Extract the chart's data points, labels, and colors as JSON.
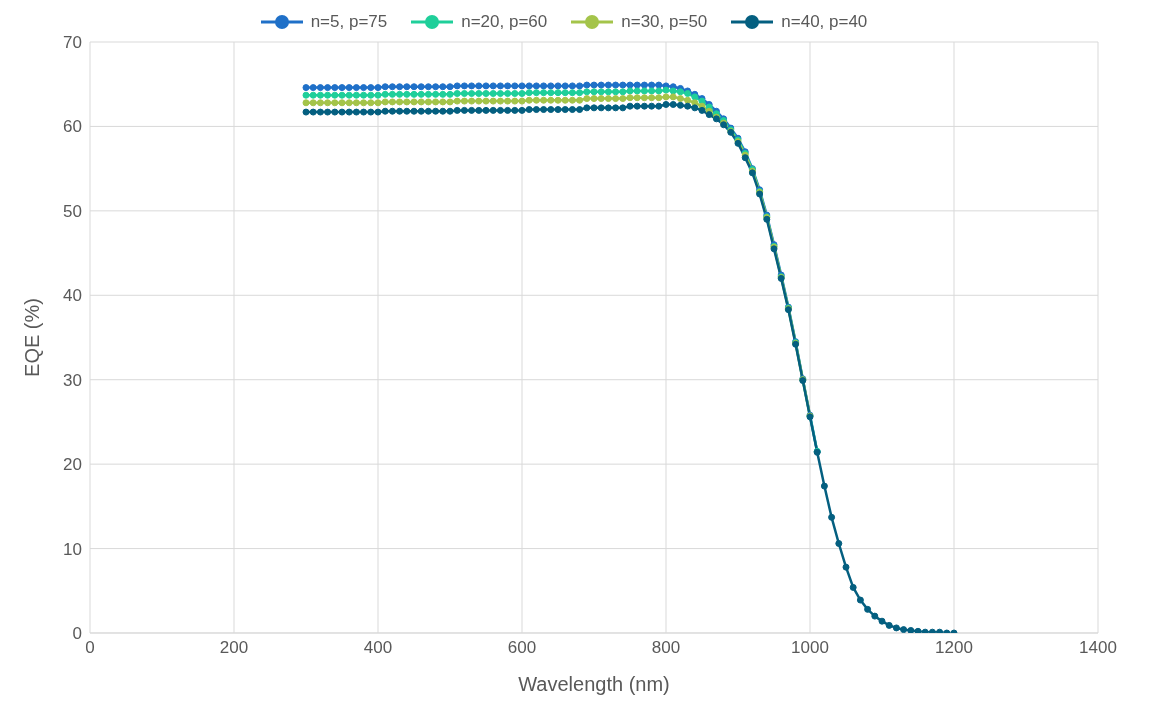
{
  "chart_data": {
    "type": "line",
    "xlabel": "Wavelength (nm)",
    "ylabel": "EQE (%)",
    "xlim": [
      0,
      1400
    ],
    "xticks": [
      0,
      200,
      400,
      600,
      800,
      1000,
      1200,
      1400
    ],
    "ylim": [
      0,
      70
    ],
    "yticks": [
      0,
      10,
      20,
      30,
      40,
      50,
      60,
      70
    ],
    "grid": true,
    "legend": "top",
    "marker": "circle",
    "line_style": "solid",
    "x": [
      300,
      310,
      320,
      330,
      340,
      350,
      360,
      370,
      380,
      390,
      400,
      410,
      420,
      430,
      440,
      450,
      460,
      470,
      480,
      490,
      500,
      510,
      520,
      530,
      540,
      550,
      560,
      570,
      580,
      590,
      600,
      610,
      620,
      630,
      640,
      650,
      660,
      670,
      680,
      690,
      700,
      710,
      720,
      730,
      740,
      750,
      760,
      770,
      780,
      790,
      800,
      810,
      820,
      830,
      840,
      850,
      860,
      870,
      880,
      890,
      900,
      910,
      920,
      930,
      940,
      950,
      960,
      970,
      980,
      990,
      1000,
      1010,
      1020,
      1030,
      1040,
      1050,
      1060,
      1070,
      1080,
      1090,
      1100,
      1110,
      1120,
      1130,
      1140,
      1150,
      1160,
      1170,
      1180,
      1190,
      1200
    ],
    "series": [
      {
        "name": "n=5, p=75",
        "color": "#1f70c8",
        "values": [
          64.6,
          64.6,
          64.6,
          64.6,
          64.6,
          64.6,
          64.6,
          64.6,
          64.6,
          64.6,
          64.6,
          64.7,
          64.7,
          64.7,
          64.7,
          64.7,
          64.7,
          64.7,
          64.7,
          64.7,
          64.7,
          64.8,
          64.8,
          64.8,
          64.8,
          64.8,
          64.8,
          64.8,
          64.8,
          64.8,
          64.8,
          64.8,
          64.8,
          64.8,
          64.8,
          64.8,
          64.8,
          64.8,
          64.8,
          64.9,
          64.9,
          64.9,
          64.9,
          64.9,
          64.9,
          64.9,
          64.9,
          64.9,
          64.9,
          64.9,
          64.8,
          64.7,
          64.5,
          64.2,
          63.8,
          63.3,
          62.6,
          61.8,
          60.9,
          59.8,
          58.6,
          57.0,
          55.0,
          52.5,
          49.5,
          46.0,
          42.4,
          38.6,
          34.5,
          30.1,
          25.8,
          21.5,
          null,
          null,
          null,
          null,
          null,
          null,
          null,
          null,
          null,
          null,
          null,
          null,
          null,
          null,
          null,
          null,
          null,
          null,
          null
        ]
      },
      {
        "name": "n=20, p=60",
        "color": "#1fcf9a",
        "values": [
          63.7,
          63.7,
          63.7,
          63.7,
          63.7,
          63.7,
          63.7,
          63.7,
          63.7,
          63.7,
          63.7,
          63.8,
          63.8,
          63.8,
          63.8,
          63.8,
          63.8,
          63.8,
          63.8,
          63.8,
          63.8,
          63.9,
          63.9,
          63.9,
          63.9,
          63.9,
          63.9,
          63.9,
          63.9,
          63.9,
          63.9,
          64.0,
          64.0,
          64.0,
          64.0,
          64.0,
          64.0,
          64.0,
          64.0,
          64.1,
          64.1,
          64.1,
          64.1,
          64.1,
          64.1,
          64.2,
          64.2,
          64.2,
          64.2,
          64.2,
          64.3,
          64.2,
          64.1,
          63.9,
          63.5,
          63.0,
          62.3,
          61.5,
          60.7,
          59.6,
          58.4,
          56.8,
          54.9,
          52.3,
          49.3,
          45.8,
          42.2,
          38.5,
          34.4,
          30.0,
          25.7,
          21.5,
          null,
          null,
          null,
          null,
          null,
          null,
          null,
          null,
          null,
          null,
          null,
          null,
          null,
          null,
          null,
          null,
          null,
          null,
          null
        ]
      },
      {
        "name": "n=30, p=50",
        "color": "#a4c44a",
        "values": [
          62.8,
          62.8,
          62.8,
          62.8,
          62.8,
          62.8,
          62.8,
          62.8,
          62.8,
          62.8,
          62.8,
          62.9,
          62.9,
          62.9,
          62.9,
          62.9,
          62.9,
          62.9,
          62.9,
          62.9,
          62.9,
          63.0,
          63.0,
          63.0,
          63.0,
          63.0,
          63.0,
          63.0,
          63.0,
          63.0,
          63.0,
          63.1,
          63.1,
          63.1,
          63.1,
          63.1,
          63.1,
          63.1,
          63.1,
          63.3,
          63.3,
          63.3,
          63.3,
          63.3,
          63.3,
          63.4,
          63.4,
          63.4,
          63.4,
          63.4,
          63.5,
          63.5,
          63.3,
          63.1,
          62.8,
          62.4,
          61.8,
          61.1,
          60.4,
          59.4,
          58.2,
          56.6,
          54.7,
          52.2,
          49.2,
          45.7,
          42.1,
          38.4,
          34.3,
          30.0,
          25.7,
          null,
          null,
          null,
          null,
          null,
          null,
          null,
          null,
          null,
          null,
          null,
          null,
          null,
          null,
          null,
          null,
          null,
          null,
          null,
          null
        ]
      },
      {
        "name": "n=40, p=40",
        "color": "#045f80",
        "values": [
          61.7,
          61.7,
          61.7,
          61.7,
          61.7,
          61.7,
          61.7,
          61.7,
          61.7,
          61.7,
          61.7,
          61.8,
          61.8,
          61.8,
          61.8,
          61.8,
          61.8,
          61.8,
          61.8,
          61.8,
          61.8,
          61.9,
          61.9,
          61.9,
          61.9,
          61.9,
          61.9,
          61.9,
          61.9,
          61.9,
          61.9,
          62.0,
          62.0,
          62.0,
          62.0,
          62.0,
          62.0,
          62.0,
          62.0,
          62.2,
          62.2,
          62.2,
          62.2,
          62.2,
          62.2,
          62.4,
          62.4,
          62.4,
          62.4,
          62.4,
          62.6,
          62.6,
          62.5,
          62.4,
          62.2,
          61.9,
          61.4,
          60.9,
          60.2,
          59.3,
          58.0,
          56.3,
          54.5,
          52.0,
          49.0,
          45.5,
          42.0,
          38.3,
          34.2,
          29.9,
          25.6,
          21.4,
          17.4,
          13.7,
          10.6,
          7.8,
          5.4,
          3.9,
          2.8,
          2.0,
          1.4,
          0.9,
          0.6,
          0.4,
          0.3,
          0.2,
          0.1,
          0.1,
          0.1,
          0.0,
          0.0
        ]
      }
    ]
  }
}
